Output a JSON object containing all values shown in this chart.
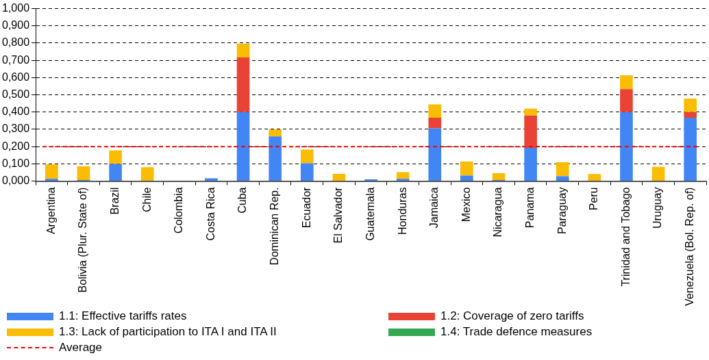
{
  "chart_data": {
    "type": "bar",
    "stacked": true,
    "categories": [
      "Argentina",
      "Bolivia (Plur. State of)",
      "Brazil",
      "Chile",
      "Colombia",
      "Costa Rica",
      "Cuba",
      "Dominican Rep.",
      "Ecuador",
      "El Salvador",
      "Guatemala",
      "Honduras",
      "Jamaica",
      "Mexico",
      "Nicaragua",
      "Panama",
      "Paraguay",
      "Peru",
      "Trinidad and Tobago",
      "Uruguay",
      "Venezuela (Bol. Rep. of)"
    ],
    "series": [
      {
        "name": "1.1: Effective tariffs rates",
        "color": "#4285f4",
        "values": [
          0.013,
          0.006,
          0.099,
          0,
          null,
          0.016,
          0.4,
          0.259,
          0.103,
          null,
          0.01,
          0.013,
          0.306,
          0.032,
          0.006,
          0.193,
          0.028,
          0,
          0.4,
          0.002,
          0.367
        ]
      },
      {
        "name": "1.2: Coverage of zero tariffs",
        "color": "#ea4335",
        "values": [
          0,
          0,
          0,
          0,
          0,
          0,
          0.317,
          0,
          0,
          0,
          0,
          0,
          0.061,
          0,
          0,
          0.187,
          0,
          0,
          0.133,
          0,
          0.033
        ]
      },
      {
        "name": "1.3: Lack of participation to ITA I and ITA II",
        "color": "#fbbc04",
        "values": [
          0.083,
          0.08,
          0.079,
          0.081,
          0,
          0,
          0.08,
          0.041,
          0.08,
          0.042,
          0,
          0.039,
          0.078,
          0.081,
          0.04,
          0.04,
          0.081,
          0.041,
          0.08,
          0.081,
          0.078
        ]
      },
      {
        "name": "1.4: Trade defence measures",
        "color": "#34a853",
        "values": [
          0,
          0,
          0,
          0,
          0,
          0,
          0,
          0,
          0,
          0,
          0,
          0,
          0,
          0,
          0,
          0,
          0,
          0,
          0,
          0,
          0
        ]
      }
    ],
    "ylim": [
      0,
      1
    ],
    "yticks": [
      {
        "value": 0,
        "label": "0,000"
      },
      {
        "value": 0.1,
        "label": "0,100"
      },
      {
        "value": 0.2,
        "label": "0,200"
      },
      {
        "value": 0.3,
        "label": "0,300"
      },
      {
        "value": 0.4,
        "label": "0,400"
      },
      {
        "value": 0.5,
        "label": "0,500"
      },
      {
        "value": 0.6,
        "label": "0,600"
      },
      {
        "value": 0.7,
        "label": "0,700"
      },
      {
        "value": 0.8,
        "label": "0,800"
      },
      {
        "value": 0.9,
        "label": "0,900"
      },
      {
        "value": 1,
        "label": "1,000"
      }
    ],
    "grid": "y",
    "legend": "bottom",
    "ref_lines": [
      {
        "axis": "y",
        "value": 0.2,
        "label": "Average",
        "color": "#ff0000",
        "line_style": "dashed"
      }
    ]
  }
}
